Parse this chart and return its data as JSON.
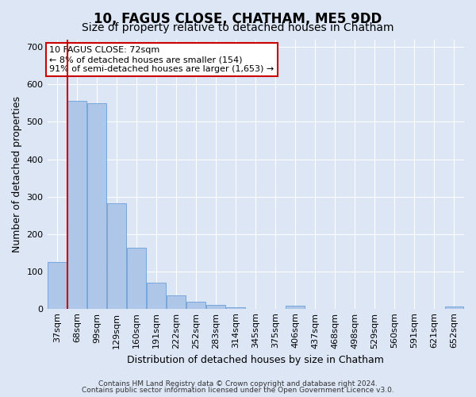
{
  "title": "10, FAGUS CLOSE, CHATHAM, ME5 9DD",
  "subtitle": "Size of property relative to detached houses in Chatham",
  "xlabel": "Distribution of detached houses by size in Chatham",
  "ylabel": "Number of detached properties",
  "footer_line1": "Contains HM Land Registry data © Crown copyright and database right 2024.",
  "footer_line2": "Contains public sector information licensed under the Open Government Licence v3.0.",
  "categories": [
    "37sqm",
    "68sqm",
    "99sqm",
    "129sqm",
    "160sqm",
    "191sqm",
    "222sqm",
    "252sqm",
    "283sqm",
    "314sqm",
    "345sqm",
    "375sqm",
    "406sqm",
    "437sqm",
    "468sqm",
    "498sqm",
    "529sqm",
    "560sqm",
    "591sqm",
    "621sqm",
    "652sqm"
  ],
  "values": [
    125,
    557,
    550,
    283,
    163,
    70,
    35,
    18,
    9,
    4,
    0,
    0,
    8,
    0,
    0,
    0,
    0,
    0,
    0,
    0,
    5
  ],
  "bar_color": "#aec6e8",
  "bar_edge_color": "#6a9fd8",
  "vline_color": "#cc0000",
  "vline_x_index": 1,
  "annotation_text": "10 FAGUS CLOSE: 72sqm\n← 8% of detached houses are smaller (154)\n91% of semi-detached houses are larger (1,653) →",
  "annotation_box_color": "#ffffff",
  "annotation_box_edge_color": "#cc0000",
  "ylim": [
    0,
    720
  ],
  "yticks": [
    0,
    100,
    200,
    300,
    400,
    500,
    600,
    700
  ],
  "fig_bg_color": "#dce6f5",
  "plot_bg_color": "#dce6f5",
  "title_fontsize": 12,
  "subtitle_fontsize": 10,
  "tick_fontsize": 8,
  "ylabel_fontsize": 9,
  "xlabel_fontsize": 9,
  "footer_fontsize": 6.5
}
